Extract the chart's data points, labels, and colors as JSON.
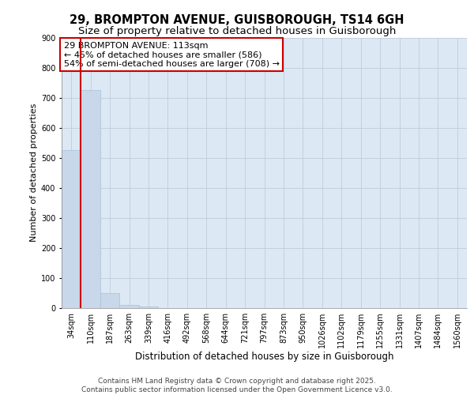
{
  "title_line1": "29, BROMPTON AVENUE, GUISBOROUGH, TS14 6GH",
  "title_line2": "Size of property relative to detached houses in Guisborough",
  "xlabel": "Distribution of detached houses by size in Guisborough",
  "ylabel": "Number of detached properties",
  "categories": [
    "34sqm",
    "110sqm",
    "187sqm",
    "263sqm",
    "339sqm",
    "416sqm",
    "492sqm",
    "568sqm",
    "644sqm",
    "721sqm",
    "797sqm",
    "873sqm",
    "950sqm",
    "1026sqm",
    "1102sqm",
    "1179sqm",
    "1255sqm",
    "1331sqm",
    "1407sqm",
    "1484sqm",
    "1560sqm"
  ],
  "values": [
    525,
    725,
    50,
    10,
    5,
    0,
    0,
    0,
    0,
    0,
    0,
    0,
    0,
    0,
    0,
    0,
    0,
    0,
    0,
    0,
    0
  ],
  "bar_color": "#c8d8ea",
  "bar_edge_color": "#a8c0d8",
  "vline_color": "#cc0000",
  "vline_x": 0.5,
  "annotation_text": "29 BROMPTON AVENUE: 113sqm\n← 45% of detached houses are smaller (586)\n54% of semi-detached houses are larger (708) →",
  "annotation_box_color": "#ffffff",
  "annotation_box_edge": "#cc0000",
  "ylim": [
    0,
    900
  ],
  "yticks": [
    0,
    100,
    200,
    300,
    400,
    500,
    600,
    700,
    800,
    900
  ],
  "grid_color": "#c0ccdd",
  "background_color": "#dce8f4",
  "footer_text": "Contains HM Land Registry data © Crown copyright and database right 2025.\nContains public sector information licensed under the Open Government Licence v3.0.",
  "title_fontsize": 10.5,
  "subtitle_fontsize": 9.5,
  "xlabel_fontsize": 8.5,
  "ylabel_fontsize": 8,
  "tick_fontsize": 7,
  "annotation_fontsize": 8,
  "footer_fontsize": 6.5
}
